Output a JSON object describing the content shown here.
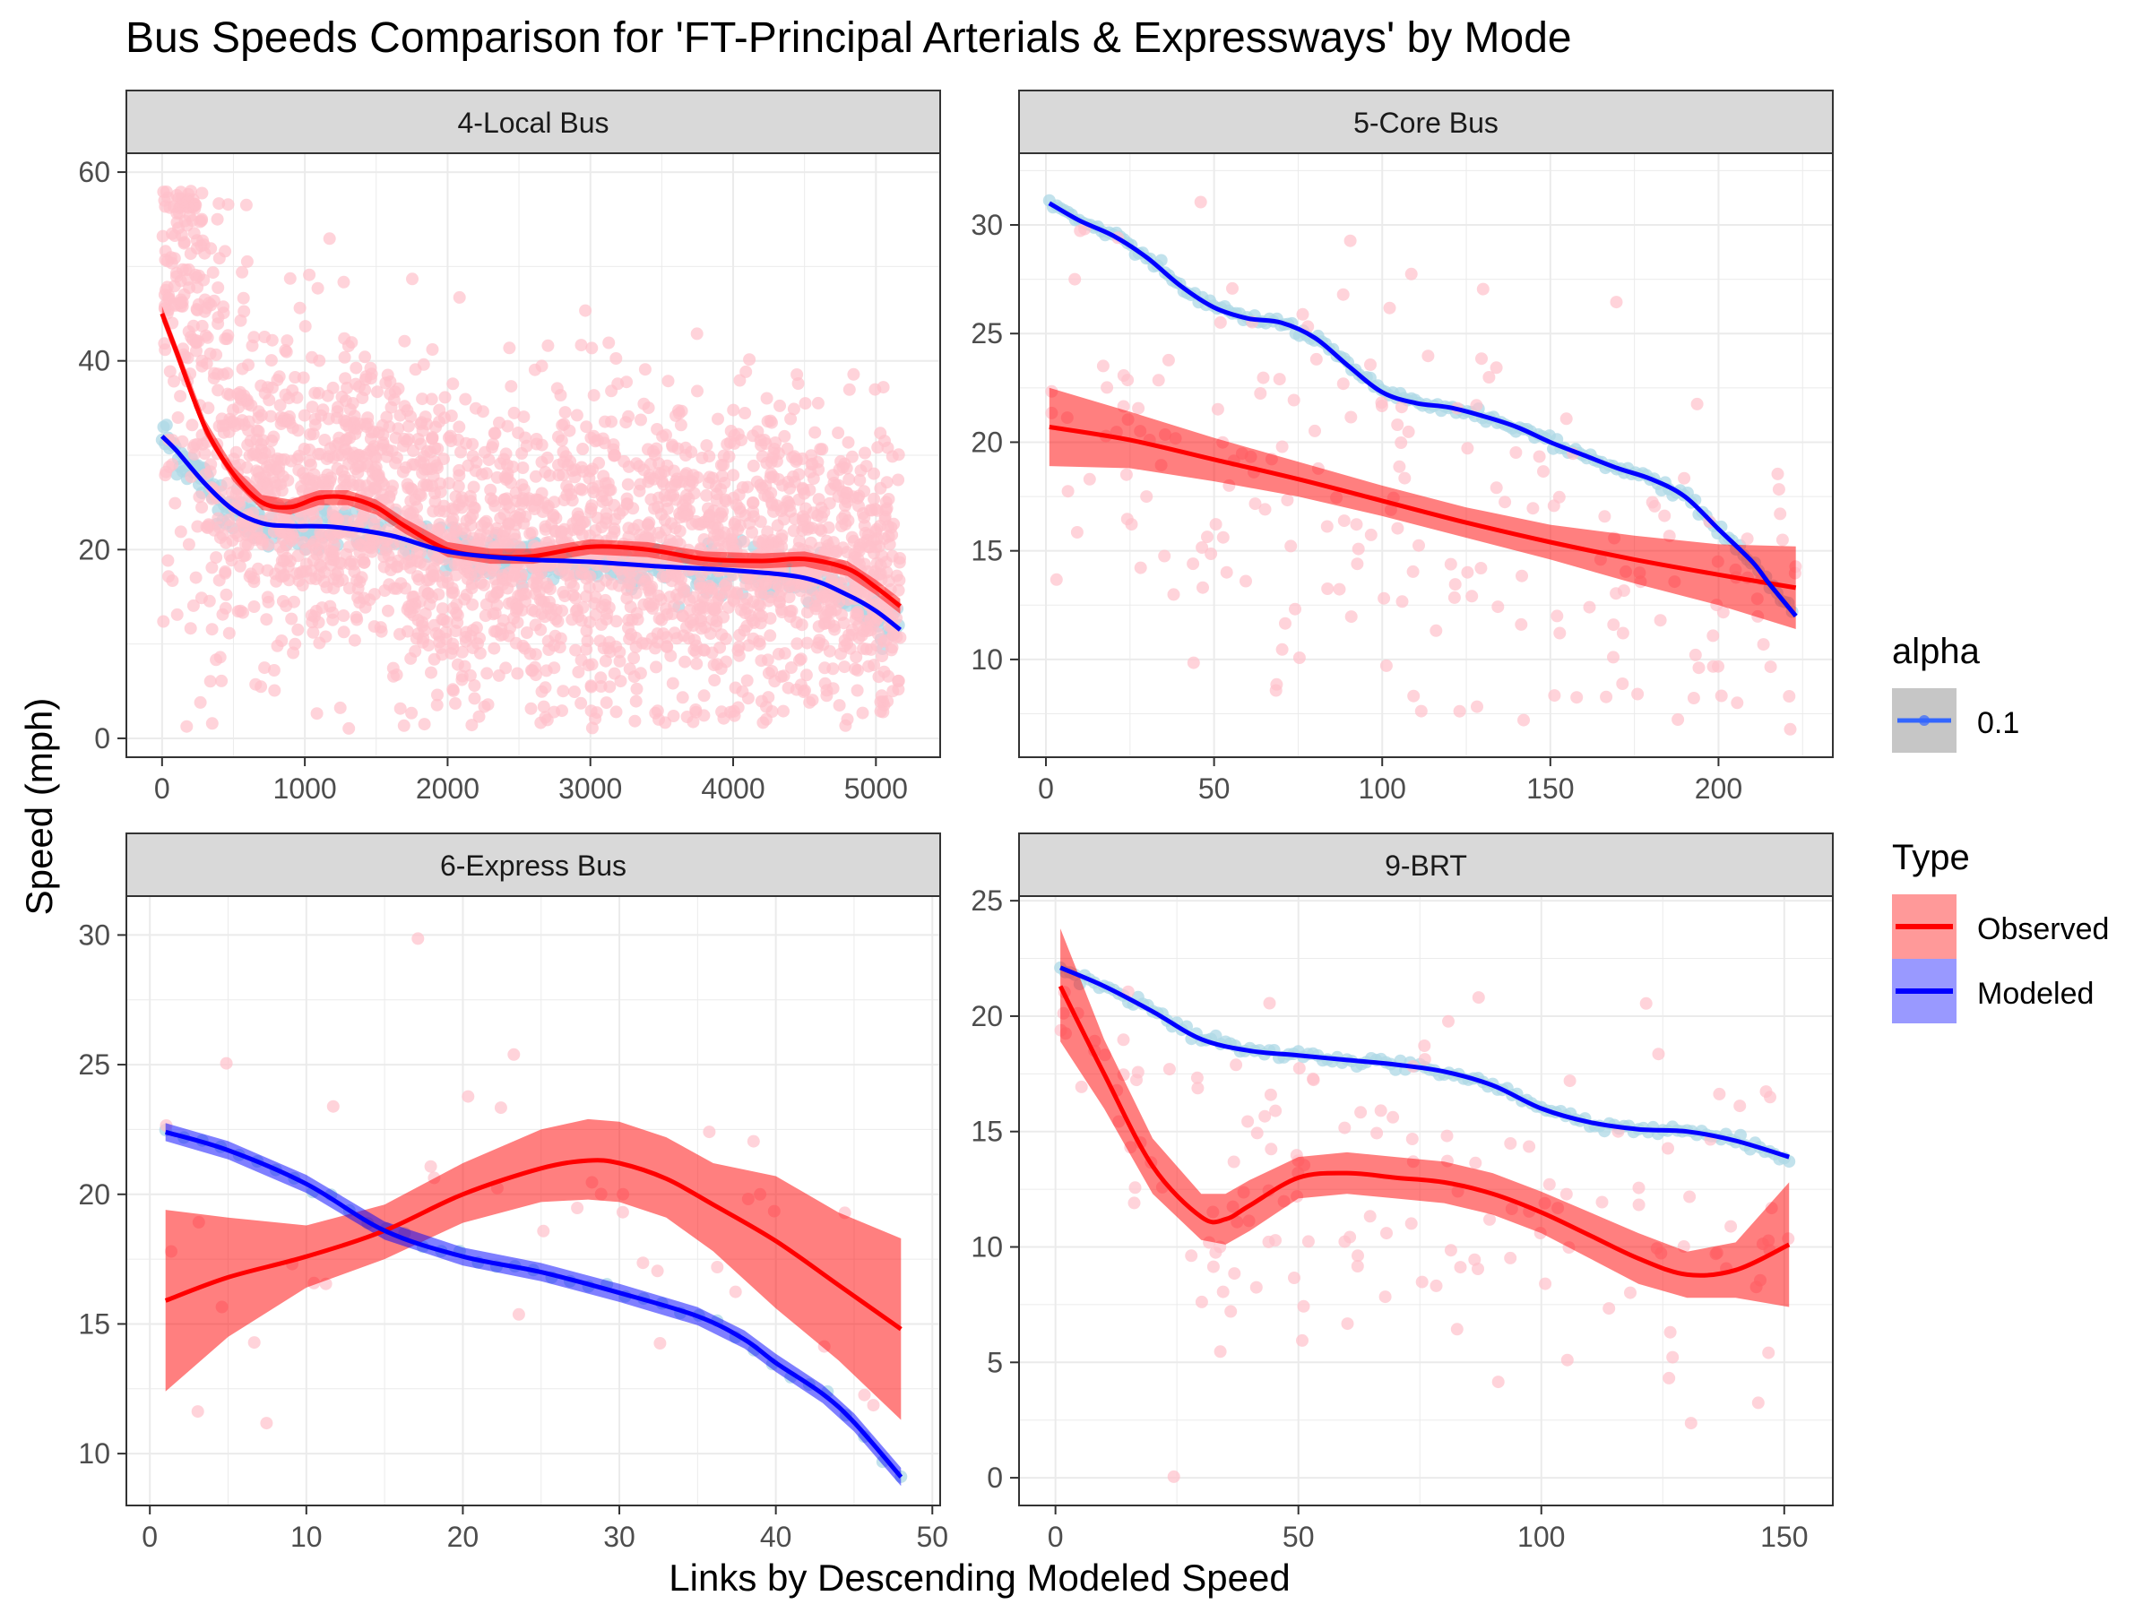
{
  "title": "Bus Speeds Comparison for 'FT-Principal Arterials & Expressways' by Mode",
  "xlabel": "Links by Descending Modeled Speed",
  "ylabel": "Speed (mph)",
  "legend": {
    "alpha_title": "alpha",
    "alpha_value": "0.1",
    "type_title": "Type",
    "entries": [
      {
        "label": "Observed",
        "color": "#ff0000",
        "fill": "#ff9999"
      },
      {
        "label": "Modeled",
        "color": "#0000ff",
        "fill": "#9999ff"
      }
    ]
  },
  "colors": {
    "observed_line": "#ff0000",
    "observed_band": "#ff0000",
    "observed_points": "#ffc0cb",
    "modeled_line": "#0000ff",
    "modeled_band": "#0000ff",
    "modeled_points": "#add8e6",
    "strip_bg": "#d9d9d9",
    "grid": "#ebebeb"
  },
  "chart_data": [
    {
      "type": "scatter",
      "panel": "4-Local Bus",
      "xlim": [
        -250,
        5450
      ],
      "ylim": [
        -2,
        62
      ],
      "xticks": [
        0,
        1000,
        2000,
        3000,
        4000,
        5000
      ],
      "yticks": [
        0,
        20,
        40,
        60
      ],
      "observed_smooth": {
        "x": [
          0,
          100,
          300,
          500,
          700,
          900,
          1100,
          1300,
          1500,
          1700,
          2000,
          2300,
          2600,
          3000,
          3400,
          3800,
          4200,
          4500,
          4800,
          5000,
          5170
        ],
        "y": [
          45,
          41,
          33,
          28,
          25,
          24.5,
          25.5,
          25.5,
          24.5,
          22.5,
          20,
          19.3,
          19.3,
          20.3,
          20,
          19,
          18.8,
          19,
          18,
          16,
          14
        ]
      },
      "modeled_smooth": {
        "x": [
          0,
          100,
          300,
          500,
          700,
          900,
          1200,
          1600,
          2000,
          2500,
          3000,
          3500,
          4000,
          4500,
          4800,
          5000,
          5170
        ],
        "y": [
          32,
          30.5,
          27,
          24.2,
          22.8,
          22.5,
          22.4,
          21.5,
          19.8,
          19,
          18.7,
          18.2,
          17.8,
          17,
          15.2,
          13.5,
          11.5
        ]
      },
      "observed_points": {
        "x_range": [
          0,
          5170
        ],
        "y_range": [
          1,
          58
        ],
        "count": 2600
      },
      "modeled_points": {
        "x_range": [
          0,
          5170
        ],
        "y_range": [
          10,
          36
        ]
      }
    },
    {
      "type": "scatter",
      "panel": "5-Core Bus",
      "xlim": [
        -8,
        234
      ],
      "ylim": [
        5.5,
        33.3
      ],
      "xticks": [
        0,
        50,
        100,
        150,
        200
      ],
      "yticks": [
        10,
        15,
        20,
        25,
        30
      ],
      "observed_smooth": {
        "x": [
          1,
          25,
          50,
          75,
          100,
          125,
          150,
          175,
          200,
          223
        ],
        "y": [
          20.7,
          20.1,
          19.2,
          18.3,
          17.3,
          16.3,
          15.4,
          14.6,
          13.9,
          13.3
        ]
      },
      "observed_band": {
        "lower": [
          18.9,
          18.8,
          18.2,
          17.5,
          16.6,
          15.6,
          14.6,
          13.5,
          12.5,
          11.4
        ],
        "upper": [
          22.5,
          21.4,
          20.2,
          19.1,
          18.0,
          17.0,
          16.2,
          15.7,
          15.3,
          15.2
        ]
      },
      "modeled_smooth": {
        "x": [
          1,
          10,
          20,
          30,
          40,
          50,
          60,
          70,
          80,
          90,
          100,
          110,
          120,
          130,
          140,
          150,
          160,
          170,
          180,
          190,
          200,
          210,
          215,
          223
        ],
        "y": [
          31,
          30.2,
          29.5,
          28.5,
          27.2,
          26.2,
          25.7,
          25.5,
          24.8,
          23.5,
          22.3,
          21.8,
          21.6,
          21.2,
          20.7,
          20,
          19.4,
          18.8,
          18.3,
          17.5,
          16,
          14.5,
          13.5,
          12
        ]
      },
      "observed_points": {
        "x_range": [
          1,
          223
        ],
        "y_range": [
          6.7,
          31.5
        ],
        "count": 200
      }
    },
    {
      "type": "scatter",
      "panel": "6-Express Bus",
      "xlim": [
        -1.5,
        50.5
      ],
      "ylim": [
        8.0,
        31.5
      ],
      "xticks": [
        0,
        10,
        20,
        30,
        40,
        50
      ],
      "yticks": [
        10,
        15,
        20,
        25,
        30
      ],
      "observed_smooth": {
        "x": [
          1,
          5,
          10,
          15,
          20,
          25,
          28,
          30,
          33,
          36,
          40,
          44,
          48
        ],
        "y": [
          15.9,
          16.8,
          17.6,
          18.6,
          20.0,
          21.0,
          21.3,
          21.2,
          20.6,
          19.6,
          18.2,
          16.5,
          14.8
        ]
      },
      "observed_band": {
        "lower": [
          12.4,
          14.5,
          16.4,
          17.5,
          18.9,
          19.7,
          19.8,
          19.7,
          19.1,
          17.8,
          15.6,
          13.6,
          11.3
        ],
        "upper": [
          19.4,
          19.1,
          18.8,
          19.6,
          21.2,
          22.5,
          22.9,
          22.8,
          22.2,
          21.2,
          20.7,
          19.3,
          18.3
        ]
      },
      "modeled_smooth": {
        "x": [
          1,
          5,
          10,
          15,
          20,
          25,
          30,
          35,
          38,
          40,
          43,
          45,
          48
        ],
        "y": [
          22.4,
          21.7,
          20.4,
          18.6,
          17.6,
          17.0,
          16.2,
          15.3,
          14.4,
          13.5,
          12.3,
          11.2,
          9.1
        ]
      },
      "modeled_band_halfwidth": 0.35,
      "observed_points": {
        "x_range": [
          1,
          48
        ],
        "y_range": [
          10.2,
          30.0
        ],
        "count": 40
      }
    },
    {
      "type": "scatter",
      "panel": "9-BRT",
      "xlim": [
        -7.5,
        160
      ],
      "ylim": [
        -1.2,
        25.2
      ],
      "xticks": [
        0,
        50,
        100,
        150
      ],
      "yticks": [
        0,
        5,
        10,
        15,
        20,
        25
      ],
      "observed_smooth": {
        "x": [
          1,
          10,
          20,
          30,
          35,
          40,
          50,
          60,
          70,
          80,
          90,
          100,
          110,
          120,
          130,
          140,
          151
        ],
        "y": [
          21.3,
          17.5,
          13.5,
          11.3,
          11.2,
          11.8,
          13.0,
          13.2,
          13.0,
          12.8,
          12.3,
          11.5,
          10.5,
          9.5,
          8.8,
          9.0,
          10.1
        ]
      },
      "observed_band": {
        "lower": [
          18.9,
          16.0,
          12.3,
          10.3,
          10.1,
          10.7,
          12.1,
          12.3,
          12.1,
          11.9,
          11.4,
          10.6,
          9.5,
          8.4,
          7.8,
          7.8,
          7.4
        ],
        "upper": [
          23.8,
          19.0,
          14.7,
          12.3,
          12.3,
          12.9,
          13.9,
          14.1,
          13.9,
          13.7,
          13.2,
          12.4,
          11.5,
          10.6,
          9.8,
          10.2,
          12.8
        ]
      },
      "modeled_smooth": {
        "x": [
          1,
          10,
          20,
          30,
          40,
          50,
          60,
          70,
          80,
          90,
          100,
          110,
          120,
          130,
          140,
          151
        ],
        "y": [
          22.1,
          21.3,
          20.2,
          19.0,
          18.5,
          18.3,
          18.1,
          17.9,
          17.6,
          17.0,
          16.0,
          15.4,
          15.1,
          15.0,
          14.6,
          13.9
        ]
      },
      "observed_points": {
        "x_range": [
          1,
          151
        ],
        "y_range": [
          0,
          21.2
        ],
        "count": 150
      }
    }
  ]
}
